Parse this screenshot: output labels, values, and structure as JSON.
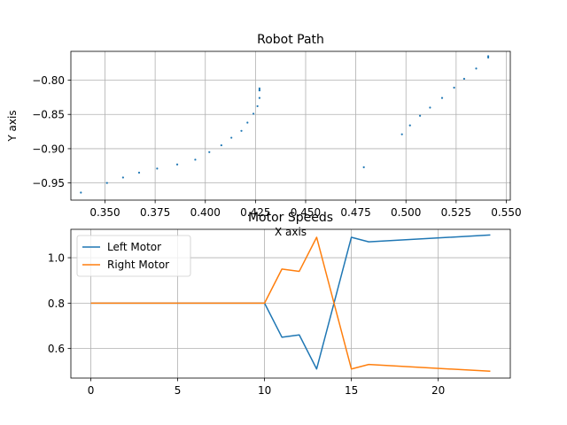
{
  "chart_data": [
    {
      "type": "scatter",
      "title": "Robot Path",
      "xlabel": "X axis",
      "ylabel": "Y axis",
      "grid": true,
      "xlim": [
        0.333,
        0.552
      ],
      "ylim": [
        -0.975,
        -0.758
      ],
      "xticks": [
        0.35,
        0.375,
        0.4,
        0.425,
        0.45,
        0.475,
        0.5,
        0.525,
        0.55
      ],
      "xtick_labels": [
        "0.350",
        "0.375",
        "0.400",
        "0.425",
        "0.450",
        "0.475",
        "0.500",
        "0.525",
        "0.550"
      ],
      "yticks": [
        -0.95,
        -0.9,
        -0.85,
        -0.8
      ],
      "ytick_labels": [
        "−0.95",
        "−0.90",
        "−0.85",
        "−0.80"
      ],
      "color": "#1f77b4",
      "x": [
        0.338,
        0.351,
        0.359,
        0.367,
        0.376,
        0.386,
        0.395,
        0.402,
        0.408,
        0.413,
        0.418,
        0.421,
        0.424,
        0.426,
        0.427,
        0.427,
        0.427,
        0.427,
        0.479,
        0.498,
        0.502,
        0.507,
        0.512,
        0.518,
        0.524,
        0.529,
        0.535,
        0.541,
        0.541
      ],
      "y": [
        -0.964,
        -0.95,
        -0.942,
        -0.935,
        -0.929,
        -0.923,
        -0.916,
        -0.905,
        -0.895,
        -0.884,
        -0.874,
        -0.862,
        -0.849,
        -0.838,
        -0.826,
        -0.815,
        -0.814,
        -0.812,
        -0.927,
        -0.879,
        -0.866,
        -0.852,
        -0.84,
        -0.826,
        -0.811,
        -0.798,
        -0.783,
        -0.767,
        -0.765
      ]
    },
    {
      "type": "line",
      "title": "Motor Speeds",
      "grid": true,
      "xlim": [
        -1.15,
        24.15
      ],
      "ylim": [
        0.47,
        1.125
      ],
      "xticks": [
        0,
        5,
        10,
        15,
        20
      ],
      "xtick_labels": [
        "0",
        "5",
        "10",
        "15",
        "20"
      ],
      "yticks": [
        0.6,
        0.8,
        1.0
      ],
      "ytick_labels": [
        "0.6",
        "0.8",
        "1.0"
      ],
      "legend": "upper-left",
      "series": [
        {
          "name": "Left Motor",
          "color": "#1f77b4",
          "x": [
            0,
            10,
            11,
            12,
            13,
            15,
            16,
            23
          ],
          "values": [
            0.8,
            0.8,
            0.65,
            0.66,
            0.51,
            1.09,
            1.07,
            1.1
          ]
        },
        {
          "name": "Right Motor",
          "color": "#ff7f0e",
          "x": [
            0,
            10,
            11,
            12,
            13,
            15,
            16,
            23
          ],
          "values": [
            0.8,
            0.8,
            0.95,
            0.94,
            1.09,
            0.51,
            0.53,
            0.5
          ]
        }
      ]
    }
  ]
}
